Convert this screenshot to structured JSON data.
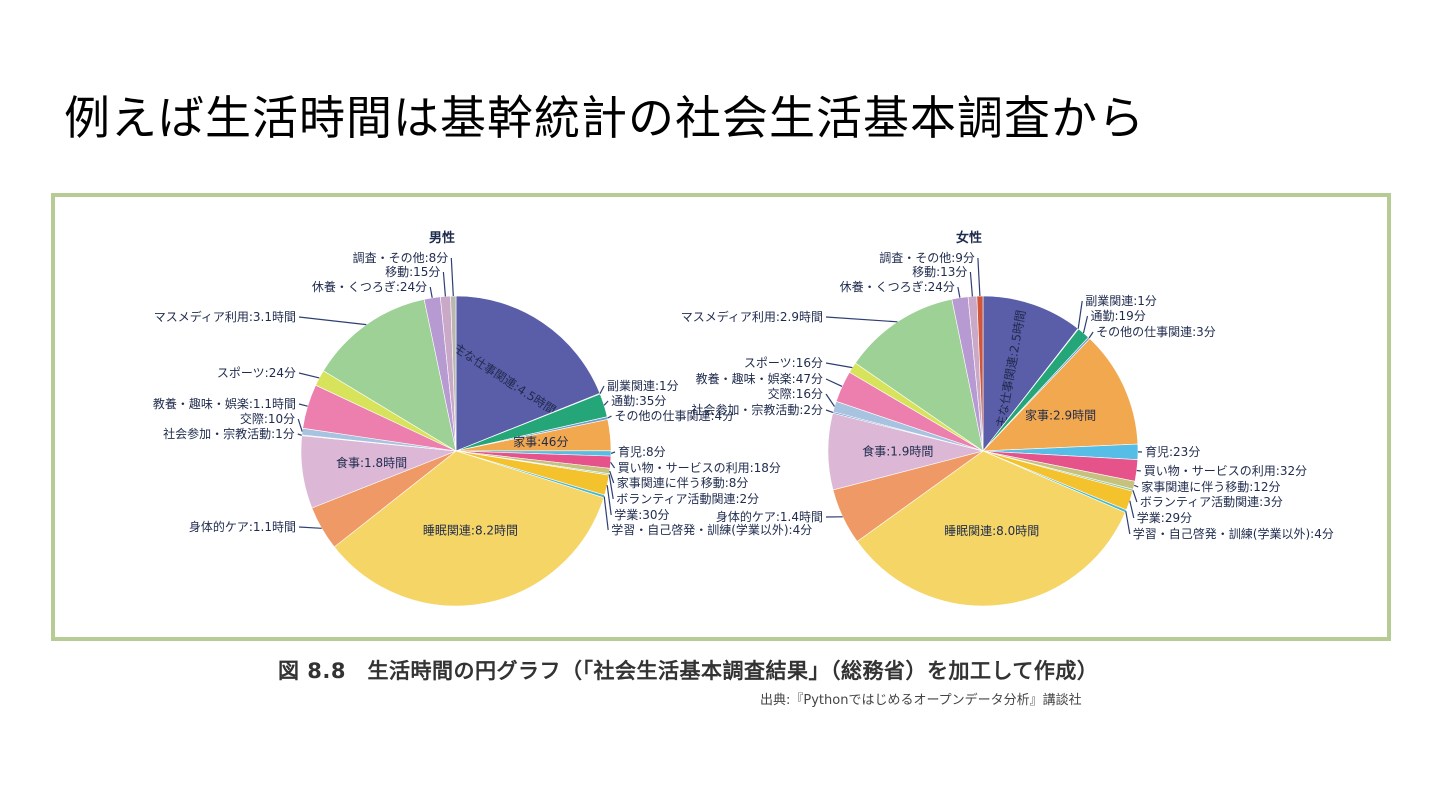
{
  "slide": {
    "title": "例えば生活時間は基幹統計の社会生活基本調査から",
    "caption": "図 8.8　生活時間の円グラフ（「社会生活基本調査結果」（総務省）を加工して作成）",
    "source": "出典:『Pythonではじめるオープンデータ分析』講談社"
  },
  "chart_data": [
    {
      "type": "pie",
      "title": "男性",
      "unit": "minutes",
      "start": "12 o'clock, clockwise",
      "slices": [
        {
          "label": "主な仕事関連:4.5時間",
          "value": 270,
          "color": "#5a5ea8",
          "placement": "inside-radial"
        },
        {
          "label": "副業関連:1分",
          "value": 1,
          "color": "#3a8fa8",
          "placement": "right"
        },
        {
          "label": "通勤:35分",
          "value": 35,
          "color": "#25a679",
          "placement": "right"
        },
        {
          "label": "その他の仕事関連:4分",
          "value": 4,
          "color": "#6f9fd0",
          "placement": "right"
        },
        {
          "label": "家事:46分",
          "value": 46,
          "color": "#f2a84e",
          "placement": "inside"
        },
        {
          "label": "育児:8分",
          "value": 8,
          "color": "#55bde6",
          "placement": "right"
        },
        {
          "label": "買い物・サービスの利用:18分",
          "value": 18,
          "color": "#e6538a",
          "placement": "right"
        },
        {
          "label": "家事関連に伴う移動:8分",
          "value": 8,
          "color": "#c6c27e",
          "placement": "right"
        },
        {
          "label": "ボランティア活動関連:2分",
          "value": 2,
          "color": "#8dc6a0",
          "placement": "right"
        },
        {
          "label": "学業:30分",
          "value": 30,
          "color": "#f4c22d",
          "placement": "right"
        },
        {
          "label": "学習・自己啓発・訓練(学業以外):4分",
          "value": 4,
          "color": "#48b8cf",
          "placement": "right"
        },
        {
          "label": "睡眠関連:8.2時間",
          "value": 492,
          "color": "#f5d566",
          "placement": "inside"
        },
        {
          "label": "身体的ケア:1.1時間",
          "value": 66,
          "color": "#ef9a66",
          "placement": "left"
        },
        {
          "label": "食事:1.8時間",
          "value": 108,
          "color": "#dcb8d6",
          "placement": "inside"
        },
        {
          "label": "社会参加・宗教活動:1分",
          "value": 1,
          "color": "#4a7fbd",
          "placement": "left"
        },
        {
          "label": "交際:10分",
          "value": 10,
          "color": "#a8c3df",
          "placement": "left"
        },
        {
          "label": "教養・趣味・娯楽:1.1時間",
          "value": 66,
          "color": "#ec7fad",
          "placement": "left"
        },
        {
          "label": "スポーツ:24分",
          "value": 24,
          "color": "#d7e35a",
          "placement": "left"
        },
        {
          "label": "マスメディア利用:3.1時間",
          "value": 186,
          "color": "#9dd196",
          "placement": "left"
        },
        {
          "label": "休養・くつろぎ:24分",
          "value": 24,
          "color": "#b79ad1",
          "placement": "left"
        },
        {
          "label": "移動:15分",
          "value": 15,
          "color": "#c9a9c7",
          "placement": "left"
        },
        {
          "label": "調査・その他:8分",
          "value": 8,
          "color": "#b8b8b0",
          "placement": "left"
        }
      ]
    },
    {
      "type": "pie",
      "title": "女性",
      "unit": "minutes",
      "start": "12 o'clock, clockwise",
      "slices": [
        {
          "label": "主な仕事関連:2.5時間",
          "value": 150,
          "color": "#5a5ea8",
          "placement": "inside-radial"
        },
        {
          "label": "副業関連:1分",
          "value": 1,
          "color": "#3a8fa8",
          "placement": "right"
        },
        {
          "label": "通勤:19分",
          "value": 19,
          "color": "#25a679",
          "placement": "right"
        },
        {
          "label": "その他の仕事関連:3分",
          "value": 3,
          "color": "#6f9fd0",
          "placement": "right"
        },
        {
          "label": "家事:2.9時間",
          "value": 174,
          "color": "#f2a84e",
          "placement": "inside"
        },
        {
          "label": "育児:23分",
          "value": 23,
          "color": "#55bde6",
          "placement": "right"
        },
        {
          "label": "買い物・サービスの利用:32分",
          "value": 32,
          "color": "#e6538a",
          "placement": "right"
        },
        {
          "label": "家事関連に伴う移動:12分",
          "value": 12,
          "color": "#c6c27e",
          "placement": "right"
        },
        {
          "label": "ボランティア活動関連:3分",
          "value": 3,
          "color": "#8dc6a0",
          "placement": "right"
        },
        {
          "label": "学業:29分",
          "value": 29,
          "color": "#f4c22d",
          "placement": "right"
        },
        {
          "label": "学習・自己啓発・訓練(学業以外):4分",
          "value": 4,
          "color": "#48b8cf",
          "placement": "right"
        },
        {
          "label": "睡眠関連:8.0時間",
          "value": 480,
          "color": "#f5d566",
          "placement": "inside"
        },
        {
          "label": "身体的ケア:1.4時間",
          "value": 84,
          "color": "#ef9a66",
          "placement": "left"
        },
        {
          "label": "食事:1.9時間",
          "value": 114,
          "color": "#dcb8d6",
          "placement": "inside"
        },
        {
          "label": "社会参加・宗教活動:2分",
          "value": 2,
          "color": "#4a7fbd",
          "placement": "left"
        },
        {
          "label": "交際:16分",
          "value": 16,
          "color": "#a8c3df",
          "placement": "left"
        },
        {
          "label": "教養・趣味・娯楽:47分",
          "value": 47,
          "color": "#ec7fad",
          "placement": "left"
        },
        {
          "label": "スポーツ:16分",
          "value": 16,
          "color": "#d7e35a",
          "placement": "left"
        },
        {
          "label": "マスメディア利用:2.9時間",
          "value": 174,
          "color": "#9dd196",
          "placement": "left"
        },
        {
          "label": "休養・くつろぎ:24分",
          "value": 24,
          "color": "#b79ad1",
          "placement": "left"
        },
        {
          "label": "移動:13分",
          "value": 13,
          "color": "#c9a9c7",
          "placement": "left"
        },
        {
          "label": "調査・その他:9分",
          "value": 9,
          "color": "#d0553a",
          "placement": "left"
        }
      ]
    }
  ]
}
